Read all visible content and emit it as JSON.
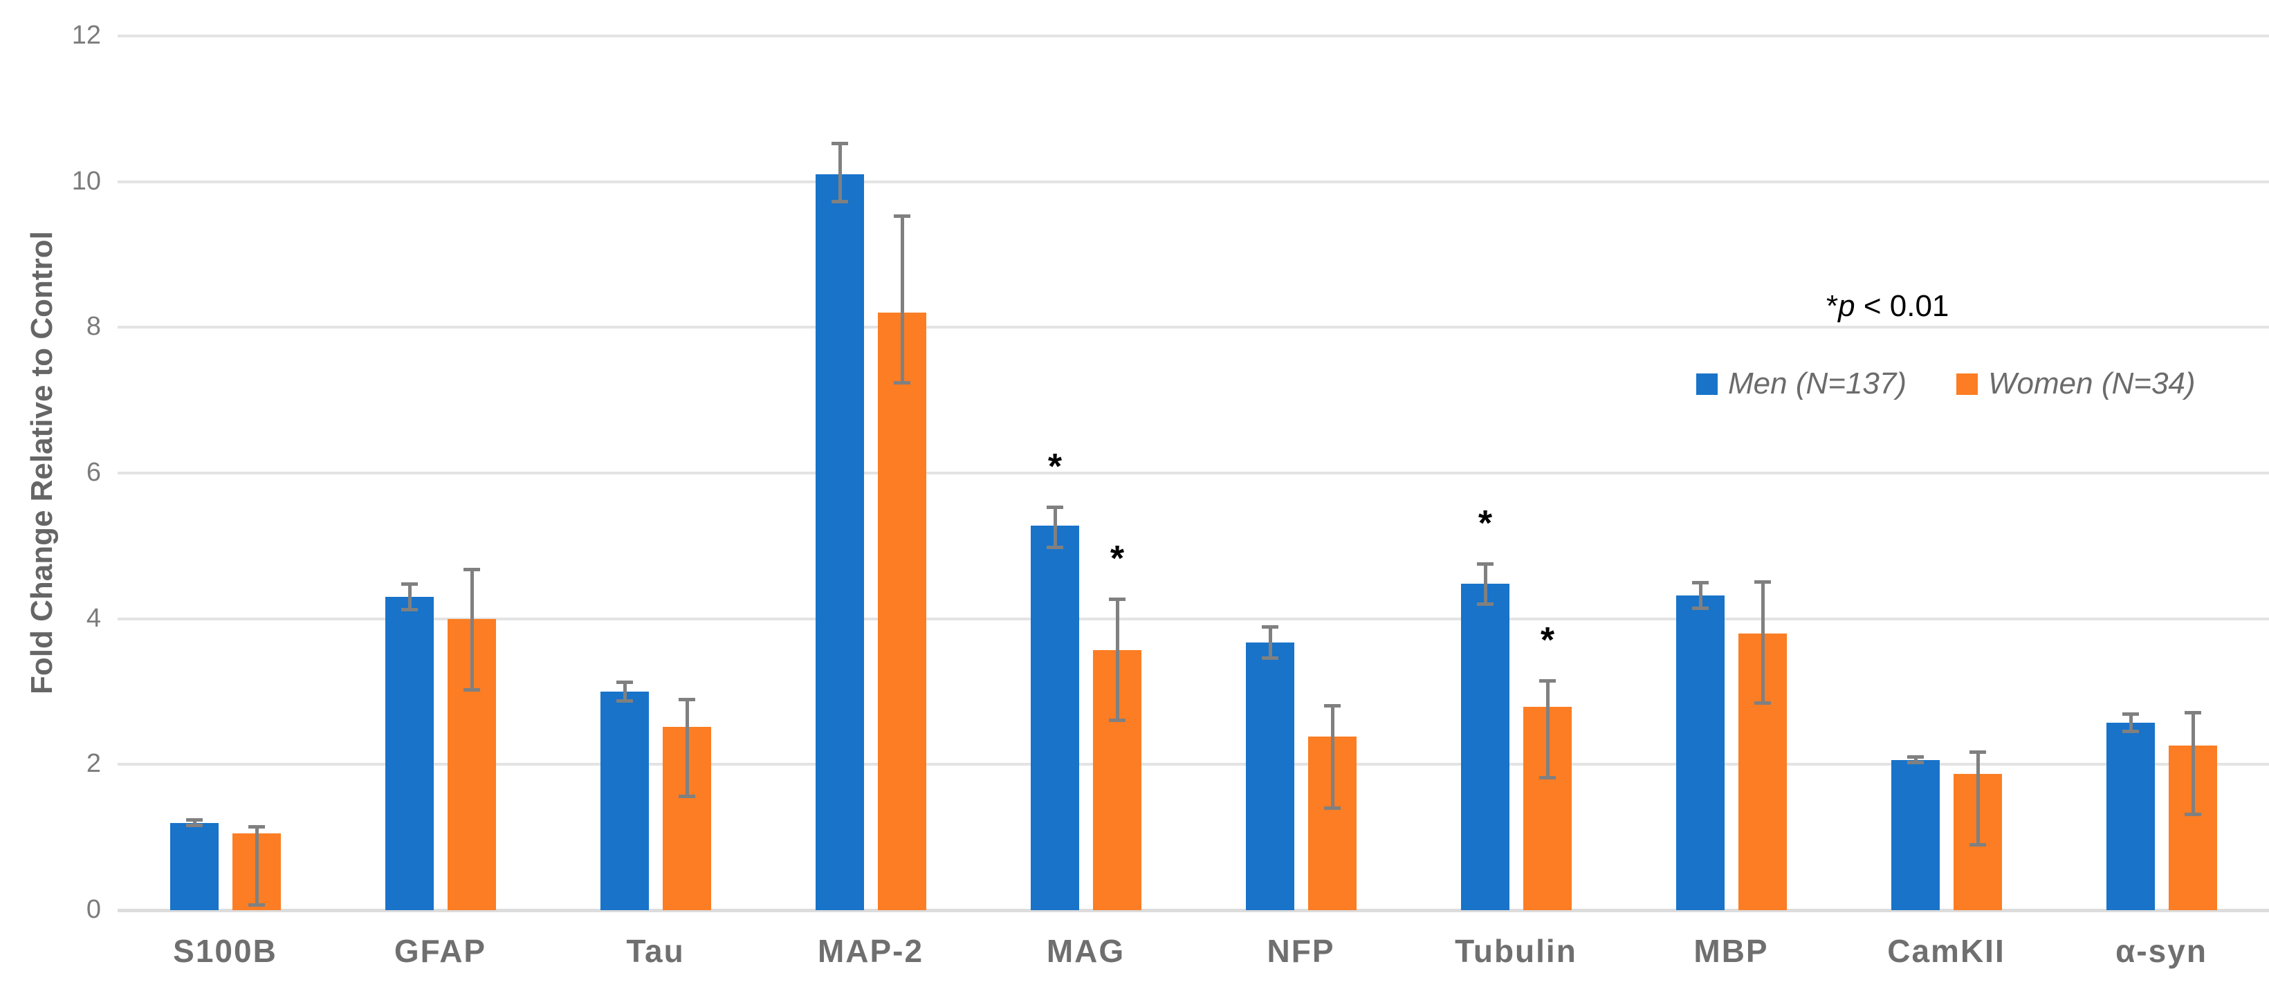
{
  "chart_data": {
    "type": "bar",
    "title": "",
    "xlabel": "",
    "ylabel": "Fold Change Relative to Control",
    "ylim": [
      0,
      12
    ],
    "yticks": [
      0,
      2,
      4,
      6,
      8,
      10,
      12
    ],
    "grid": "horizontal",
    "legend_position": "top-right-inside",
    "categories": [
      "S100B",
      "GFAP",
      "Tau",
      "MAP-2",
      "MAG",
      "NFP",
      "Tubulin",
      "MBP",
      "CamKII",
      "α-syn"
    ],
    "series": [
      {
        "name": "Men (N=137)",
        "color": "#1873C9",
        "values": [
          1.2,
          4.3,
          3.0,
          10.1,
          5.28,
          3.67,
          4.48,
          4.32,
          2.06,
          2.57
        ],
        "err_up": [
          0.06,
          0.2,
          0.15,
          0.45,
          0.27,
          0.24,
          0.3,
          0.2,
          0.07,
          0.15
        ],
        "err_down": [
          0.06,
          0.2,
          0.15,
          0.4,
          0.32,
          0.23,
          0.3,
          0.2,
          0.06,
          0.14
        ],
        "significant": [
          false,
          false,
          false,
          false,
          true,
          false,
          true,
          false,
          false,
          false
        ]
      },
      {
        "name": "Women (N=34)",
        "color": "#FC7D23",
        "values": [
          1.05,
          4.0,
          2.52,
          8.2,
          3.57,
          2.38,
          2.79,
          3.8,
          1.87,
          2.26
        ],
        "err_up": [
          0.12,
          0.7,
          0.39,
          1.35,
          0.72,
          0.45,
          0.38,
          0.73,
          0.32,
          0.47
        ],
        "err_down": [
          1.0,
          1.0,
          0.98,
          0.98,
          0.99,
          1.0,
          1.0,
          0.98,
          1.0,
          0.97
        ],
        "significant": [
          false,
          false,
          false,
          false,
          true,
          false,
          true,
          false,
          false,
          false
        ]
      }
    ],
    "annotation": {
      "text": "*p < 0.01",
      "star": "*",
      "p_italic": "p",
      "suffix": " < 0.01"
    },
    "significance_marker": "*",
    "style_colors": {
      "gridline": "#E3E3E3",
      "axis_line": "#DCDCDC",
      "error_bar": "#808080",
      "tick_label": "#7B7B7B",
      "category_label": "#6F6F6F",
      "y_title": "#666666",
      "legend_text": "#6B6B6B",
      "annotation_text": "#000000",
      "background": "#FFFFFF"
    }
  }
}
